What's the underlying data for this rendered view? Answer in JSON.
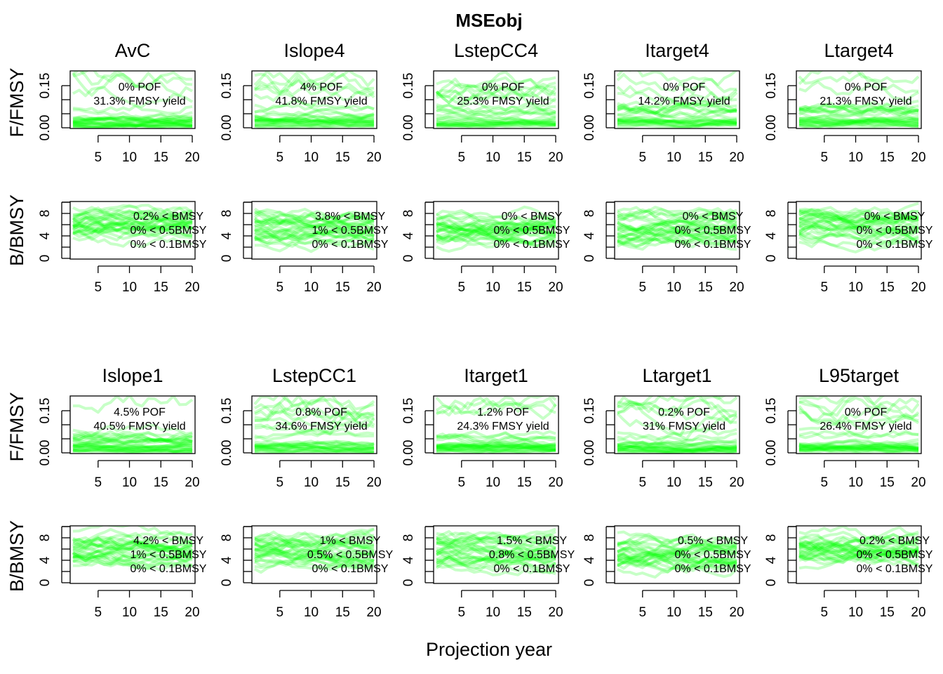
{
  "figure": {
    "title": "MSEobj",
    "xlabel": "Projection year",
    "ylabel_f": "F/FMSY",
    "ylabel_b": "B/BMSY",
    "line_color": "#00ff00"
  },
  "chart_data": {
    "type": "line",
    "title": "MSEobj",
    "xlabel": "Projection year",
    "x_range": [
      1,
      20
    ],
    "x_ticks": [
      "5",
      "10",
      "15",
      "20"
    ],
    "f_panel": {
      "ylabel": "F/FMSY",
      "ylim": [
        0,
        0.2
      ],
      "y_ticks": [
        "0.00",
        "0.15"
      ]
    },
    "b_panel": {
      "ylabel": "B/BMSY",
      "ylim": [
        0,
        10
      ],
      "y_ticks": [
        "0",
        "4",
        "8"
      ]
    },
    "management_procedures": [
      {
        "name": "AvC",
        "pof": "0% POF",
        "yield": "31.3% FMSY yield",
        "b1": "0.2% < BMSY",
        "b2": "0% < 0.5BMSY",
        "b3": "0% < 0.1BMSY"
      },
      {
        "name": "Islope4",
        "pof": "4% POF",
        "yield": "41.8% FMSY yield",
        "b1": "3.8% < BMSY",
        "b2": "1% < 0.5BMSY",
        "b3": "0% < 0.1BMSY"
      },
      {
        "name": "LstepCC4",
        "pof": "0% POF",
        "yield": "25.3% FMSY yield",
        "b1": "0% < BMSY",
        "b2": "0% < 0.5BMSY",
        "b3": "0% < 0.1BMSY"
      },
      {
        "name": "Itarget4",
        "pof": "0% POF",
        "yield": "14.2% FMSY yield",
        "b1": "0% < BMSY",
        "b2": "0% < 0.5BMSY",
        "b3": "0% < 0.1BMSY"
      },
      {
        "name": "Ltarget4",
        "pof": "0% POF",
        "yield": "21.3% FMSY yield",
        "b1": "0% < BMSY",
        "b2": "0% < 0.5BMSY",
        "b3": "0% < 0.1BMSY"
      },
      {
        "name": "Islope1",
        "pof": "4.5% POF",
        "yield": "40.5% FMSY yield",
        "b1": "4.2% < BMSY",
        "b2": "1% < 0.5BMSY",
        "b3": "0% < 0.1BMSY"
      },
      {
        "name": "LstepCC1",
        "pof": "0.8% POF",
        "yield": "34.6% FMSY yield",
        "b1": "1% < BMSY",
        "b2": "0.5% < 0.5BMSY",
        "b3": "0% < 0.1BMSY"
      },
      {
        "name": "Itarget1",
        "pof": "1.2% POF",
        "yield": "24.3% FMSY yield",
        "b1": "1.5% < BMSY",
        "b2": "0.8% < 0.5BMSY",
        "b3": "0% < 0.1BMSY"
      },
      {
        "name": "Ltarget1",
        "pof": "0.2% POF",
        "yield": "31% FMSY yield",
        "b1": "0.5% < BMSY",
        "b2": "0% < 0.5BMSY",
        "b3": "0% < 0.1BMSY"
      },
      {
        "name": "L95target",
        "pof": "0% POF",
        "yield": "26.4% FMSY yield",
        "b1": "0.2% < BMSY",
        "b2": "0% < 0.5BMSY",
        "b3": "0% < 0.1BMSY"
      }
    ]
  }
}
